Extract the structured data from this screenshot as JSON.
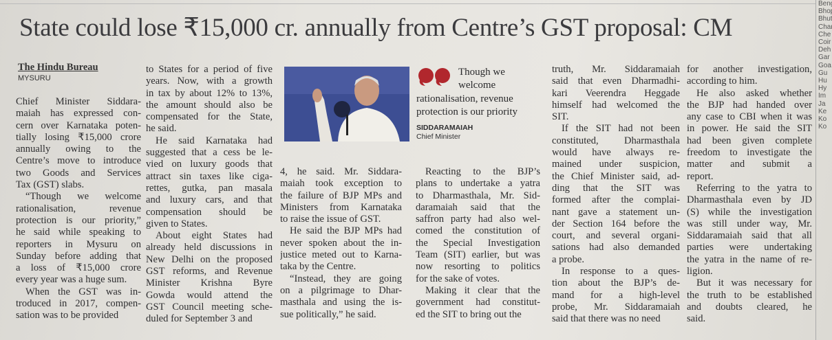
{
  "headline": "State could lose ₹15,000 cr. annually from Centre’s GST proposal: CM",
  "byline": {
    "author": "The Hindu Bureau",
    "place": "MYSURU"
  },
  "pull_quote": {
    "lines": [
      "Though we",
      "welcome",
      "rationalisation, revenue",
      "protection is our priority"
    ],
    "speaker": "SIDDARAMAIAH",
    "role": "Chief Minister"
  },
  "columns": [
    [
      [
        "Chief Minister Siddara-",
        "maiah has expressed con-",
        "cern over Karnataka poten-",
        "tially losing ₹15,000 crore",
        "annually owing to the",
        "Centre’s move to introduce",
        "two Goods and Services",
        "Tax (GST) slabs."
      ],
      [
        "“Though we welcome",
        "rationalisation, revenue",
        "protection is our priority,”",
        "he said while speaking to",
        "reporters in Mysuru on",
        "Sunday before adding that",
        "a loss of ₹15,000 crore",
        "every year was a huge sum."
      ],
      [
        "When the GST was in-",
        "troduced in 2017, compen-",
        "sation was to be provided"
      ]
    ],
    [
      [
        "to States for a period of five",
        "years. Now, with a growth",
        "in tax by about 12% to 13%,",
        "the amount should also be",
        "compensated for the State,",
        "he said."
      ],
      [
        "He said Karnataka had",
        "suggested that a cess be le-",
        "vied on luxury goods that",
        "attract sin taxes like ciga-",
        "rettes, gutka, pan masala",
        "and luxury cars, and that",
        "compensation should be",
        "given to States."
      ],
      [
        "About eight States had",
        "already held discussions in",
        "New Delhi on the proposed",
        "GST reforms, and Revenue",
        "Minister Krishna Byre",
        "Gowda would attend the",
        "GST Council meeting sche-",
        "duled for September 3 and"
      ]
    ],
    [
      [
        "4, he said. Mr. Siddara-",
        "maiah took exception to",
        "the failure of BJP MPs and",
        "Ministers from Karnataka",
        "to raise the issue of GST."
      ],
      [
        "He said the BJP MPs had",
        "never spoken about the in-",
        "justice meted out to Karna-",
        "taka by the Centre."
      ],
      [
        "“Instead, they are going",
        "on a pilgrimage to Dhar-",
        "masthala and using the is-",
        "sue politically,” he said."
      ]
    ],
    [
      [
        "Reacting to the BJP’s",
        "plans to undertake a yatra",
        "to Dharmasthala, Mr. Sid-",
        "daramaiah said that the",
        "saffron party had also wel-",
        "comed the constitution of",
        "the Special Investigation",
        "Team (SIT) earlier, but was",
        "now resorting to politics",
        "for the sake of votes."
      ],
      [
        "Making it clear that the",
        "government had constitut-",
        "ed the SIT to bring out the"
      ]
    ],
    [
      [
        "truth, Mr. Siddaramaiah",
        "said that even Dharmadhi-",
        "kari Veerendra Heggade",
        "himself had welcomed the",
        "SIT."
      ],
      [
        "If the SIT had not been",
        "constituted, Dharmasthala",
        "would have always re-",
        "mained under suspicion,",
        "the Chief Minister said, ad-",
        "ding that the SIT was",
        "formed after the complai-",
        "nant gave a statement un-",
        "der Section 164 before the",
        "court, and several organi-",
        "sations had also demanded",
        "a probe."
      ],
      [
        "In response to a ques-",
        "tion about the BJP’s de-",
        "mand for a high-level",
        "probe, Mr. Siddaramaiah",
        "said that there was no need"
      ]
    ],
    [
      [
        "for another investigation,",
        "according to him."
      ],
      [
        "He also asked whether",
        "the BJP had handed over",
        "any case to CBI when it was",
        "in power. He said the SIT",
        "had been given complete",
        "freedom to investigate the",
        "matter and submit a",
        "report."
      ],
      [
        "Referring to the yatra to",
        "Dharmasthala even by JD",
        "(S) while the investigation",
        "was still under way, Mr.",
        "Siddaramaiah said that all",
        "parties were undertaking",
        "the yatra in the name of re-",
        "ligion."
      ],
      [
        "But it was necessary for",
        "the truth to be established",
        "and doubts cleared, he",
        "said."
      ]
    ]
  ],
  "sidebar": [
    "Beng",
    "Bhop",
    "Bhut",
    "Char",
    "Che",
    "Coir",
    "Deh",
    "Gar",
    "Goa",
    "Gu",
    "Hu",
    "Hy",
    "Im",
    "Ja",
    "Ke",
    "Ko",
    "Ko"
  ]
}
